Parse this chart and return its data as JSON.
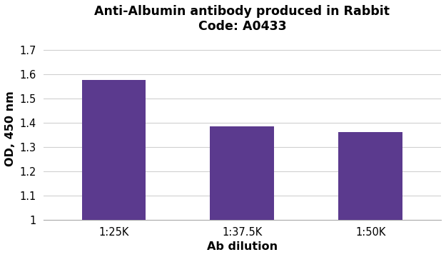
{
  "title_line1": "Anti-Albumin antibody produced in Rabbit",
  "title_line2": "Code: A0433",
  "categories": [
    "1:25K",
    "1:37.5K",
    "1:50K"
  ],
  "values": [
    1.575,
    1.385,
    1.362
  ],
  "bar_bottom": 1.0,
  "bar_color": "#5b3a8e",
  "xlabel": "Ab dilution",
  "ylabel": "OD, 450 nm",
  "ylim": [
    1.0,
    1.75
  ],
  "yticks": [
    1.0,
    1.1,
    1.2,
    1.3,
    1.4,
    1.5,
    1.6,
    1.7
  ],
  "background_color": "#ffffff",
  "grid_color": "#d0d0d0",
  "title_fontsize": 12.5,
  "axis_label_fontsize": 11.5,
  "tick_fontsize": 10.5
}
